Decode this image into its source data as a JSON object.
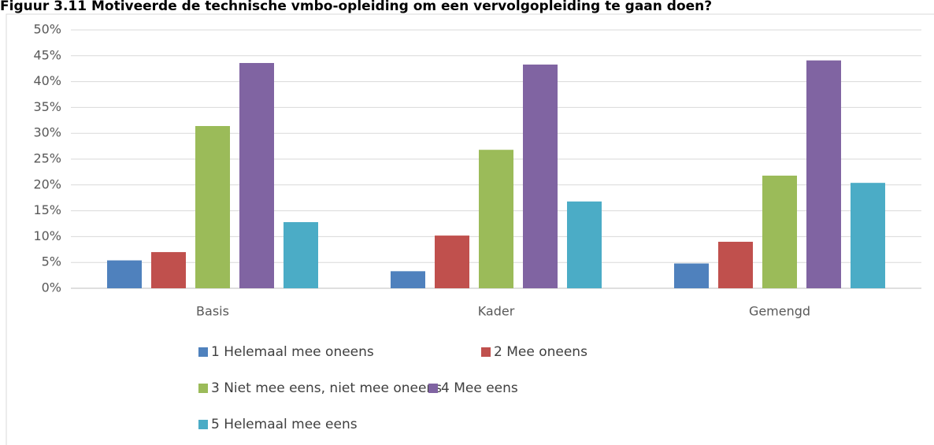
{
  "chart_data": {
    "type": "bar",
    "title": "Figuur 3.11 Motiveerde de technische vmbo-opleiding om een vervolgopleiding te gaan doen?",
    "categories": [
      "Basis",
      "Kader",
      "Gemengd"
    ],
    "series": [
      {
        "name": "1 Helemaal mee oneens",
        "color": "#4f81bd",
        "values": [
          5.4,
          3.3,
          4.8
        ]
      },
      {
        "name": "2 Mee oneens",
        "color": "#c0504d",
        "values": [
          7.0,
          10.2,
          9.0
        ]
      },
      {
        "name": "3 Niet mee eens, niet mee oneens",
        "color": "#9bbb59",
        "values": [
          31.4,
          26.8,
          21.8
        ]
      },
      {
        "name": "4 Mee eens",
        "color": "#8064a2",
        "values": [
          43.6,
          43.3,
          44.1
        ]
      },
      {
        "name": "5 Helemaal mee eens",
        "color": "#4bacc6",
        "values": [
          12.8,
          16.8,
          20.4
        ]
      }
    ],
    "ylim": [
      0,
      50
    ],
    "yticks": [
      {
        "value": 0,
        "label": "0%"
      },
      {
        "value": 5,
        "label": "5%"
      },
      {
        "value": 10,
        "label": "10%"
      },
      {
        "value": 15,
        "label": "15%"
      },
      {
        "value": 20,
        "label": "20%"
      },
      {
        "value": 25,
        "label": "25%"
      },
      {
        "value": 30,
        "label": "30%"
      },
      {
        "value": 35,
        "label": "35%"
      },
      {
        "value": 40,
        "label": "40%"
      },
      {
        "value": 45,
        "label": "45%"
      },
      {
        "value": 50,
        "label": "50%"
      }
    ],
    "grid": true,
    "legend": "bottom"
  }
}
